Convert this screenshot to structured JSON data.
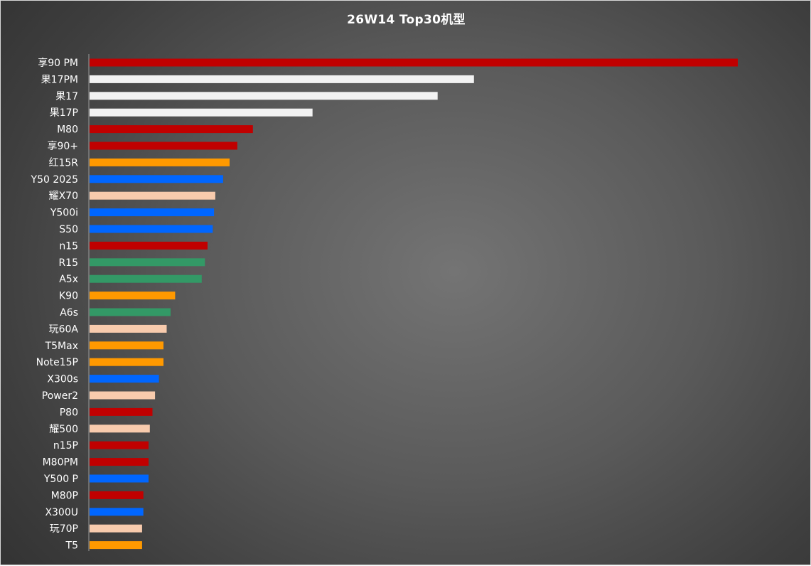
{
  "chart_data": {
    "type": "bar",
    "orientation": "horizontal",
    "title": "26W14 Top30机型",
    "xlabel": "",
    "ylabel": "",
    "grid": false,
    "legend": "none",
    "xlim": [
      0,
      100
    ],
    "categories": [
      "享90 PM",
      "果17PM",
      "果17",
      "果17P",
      "M80",
      "享90+",
      "红15R",
      "Y50 2025",
      "耀X70",
      "Y500i",
      "S50",
      "n15",
      "R15",
      "A5x",
      "K90",
      "A6s",
      "玩60A",
      "T5Max",
      "Note15P",
      "X300s",
      "Power2",
      "P80",
      "耀500",
      "n15P",
      "M80PM",
      "Y500 P",
      "M80P",
      "X300U",
      "玩70P",
      "T5"
    ],
    "values": [
      100,
      59.3,
      53.7,
      34.4,
      25.2,
      22.8,
      21.6,
      20.6,
      19.4,
      19.2,
      19.0,
      18.2,
      17.8,
      17.3,
      13.2,
      12.5,
      11.9,
      11.4,
      11.4,
      10.7,
      10.1,
      9.7,
      9.3,
      9.1,
      9.1,
      9.1,
      8.3,
      8.3,
      8.1,
      8.1
    ],
    "colors": [
      "#c00000",
      "#f2f2f2",
      "#f2f2f2",
      "#f2f2f2",
      "#c00000",
      "#c00000",
      "#ff9900",
      "#0066ff",
      "#f8cbad",
      "#0066ff",
      "#0066ff",
      "#c00000",
      "#339966",
      "#339966",
      "#ff9900",
      "#339966",
      "#f8cbad",
      "#ff9900",
      "#ff9900",
      "#0066ff",
      "#f8cbad",
      "#c00000",
      "#f8cbad",
      "#c00000",
      "#c00000",
      "#0066ff",
      "#c00000",
      "#0066ff",
      "#f8cbad",
      "#ff9900"
    ]
  }
}
